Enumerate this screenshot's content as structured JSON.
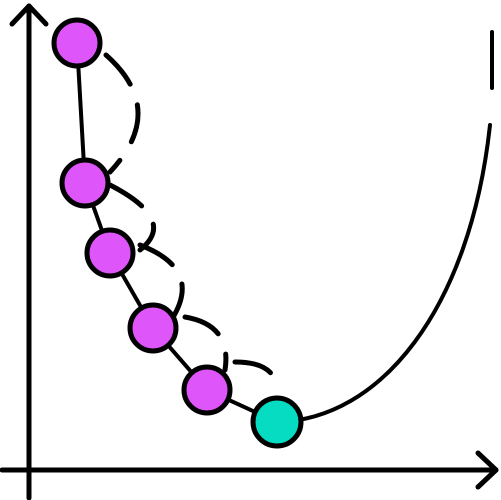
{
  "diagram": {
    "description_type": "gradient-descent-steps",
    "colors": {
      "stroke": "#000000",
      "step_point": "#de55f9",
      "minimum_point": "#05dcc2",
      "background": "#ffffff"
    },
    "steps": [
      {
        "name": "step-1",
        "kind": "step"
      },
      {
        "name": "step-2",
        "kind": "step"
      },
      {
        "name": "step-3",
        "kind": "step"
      },
      {
        "name": "step-4",
        "kind": "step"
      },
      {
        "name": "step-5",
        "kind": "step"
      },
      {
        "name": "minimum",
        "kind": "minimum"
      }
    ]
  }
}
